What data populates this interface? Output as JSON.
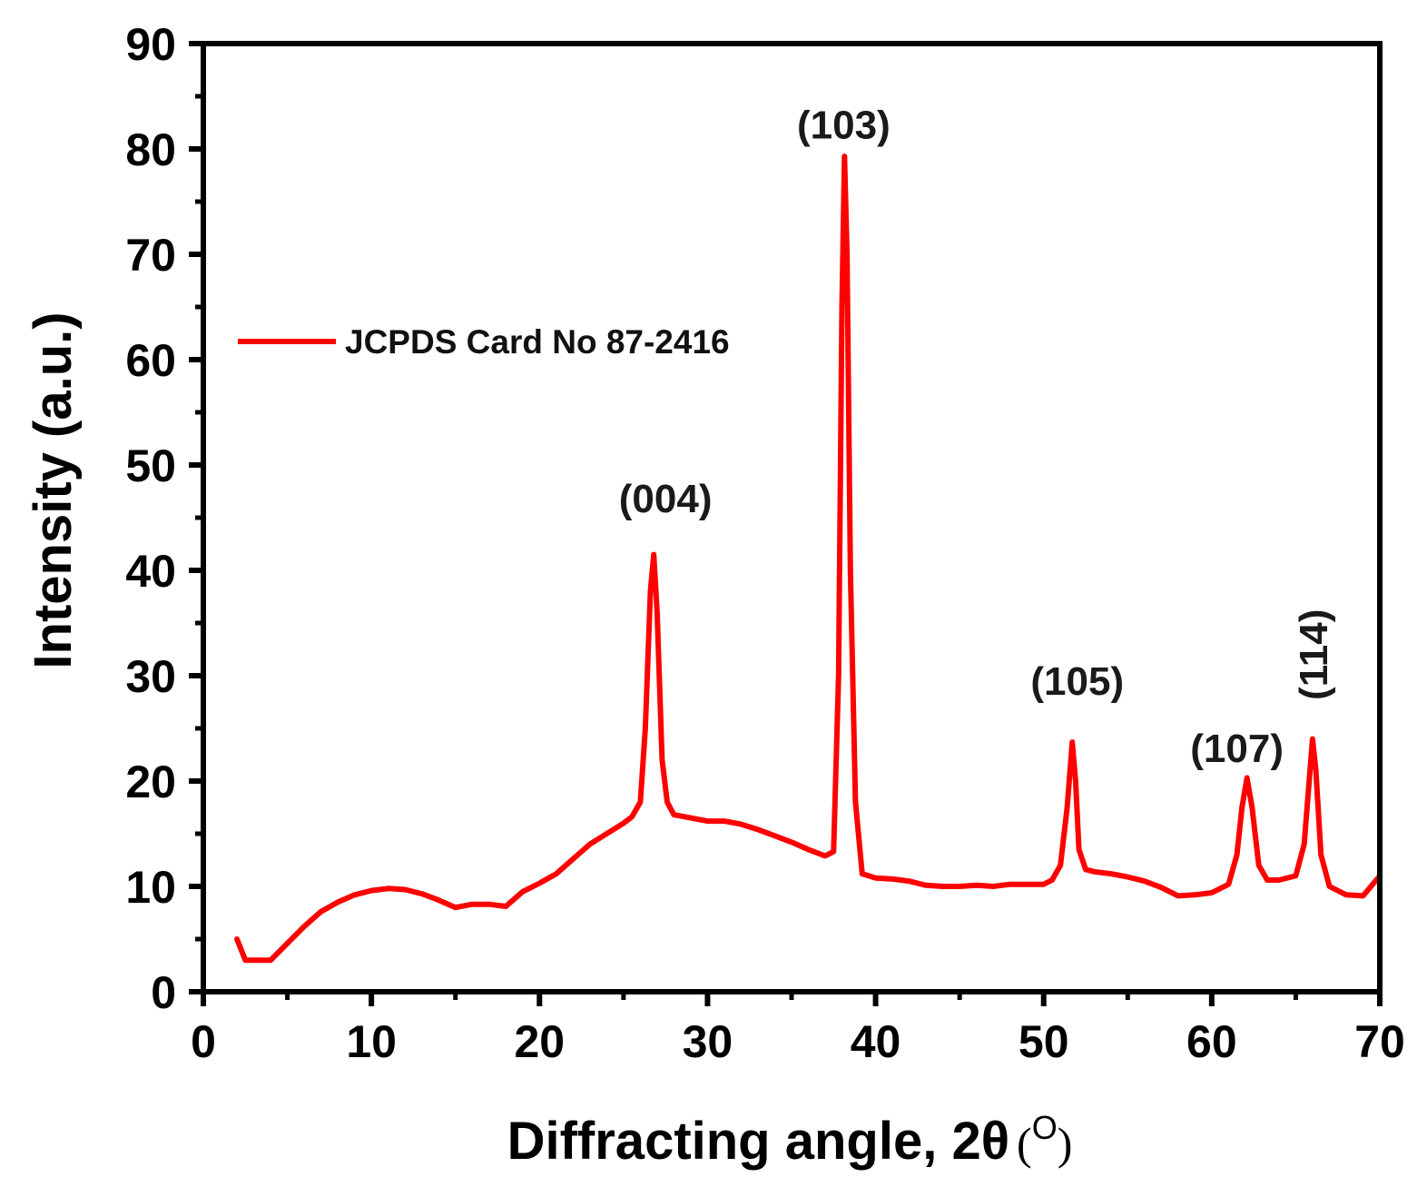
{
  "chart_data": {
    "type": "line",
    "title": "",
    "xlabel": "Diffracting angle, 2θ",
    "xlabel_unit_symbol": "O",
    "ylabel": "Intensity (a.u.)",
    "xlim": [
      0,
      70
    ],
    "ylim": [
      0,
      90
    ],
    "xticks": [
      0,
      10,
      20,
      30,
      40,
      50,
      60,
      70
    ],
    "yticks": [
      0,
      10,
      20,
      30,
      40,
      50,
      60,
      70,
      80,
      90
    ],
    "grid": false,
    "legend_position": "upper-left",
    "series": [
      {
        "name": "JCPDS Card No 87-2416",
        "color": "#ff0000",
        "x": [
          2.0,
          2.5,
          3.0,
          4.0,
          5.0,
          6.0,
          7.0,
          8.0,
          9.0,
          10.0,
          11.0,
          12.0,
          13.0,
          14.0,
          15.0,
          16.0,
          17.0,
          18.0,
          19.0,
          20.0,
          21.0,
          22.0,
          23.0,
          24.0,
          25.0,
          25.5,
          26.0,
          26.3,
          26.6,
          26.8,
          27.0,
          27.3,
          27.6,
          28.0,
          29.0,
          30.0,
          31.0,
          32.0,
          33.0,
          34.0,
          35.0,
          36.0,
          37.0,
          37.5,
          37.8,
          38.0,
          38.15,
          38.3,
          38.5,
          38.8,
          39.2,
          40.0,
          41.0,
          42.0,
          43.0,
          44.0,
          45.0,
          46.0,
          47.0,
          48.0,
          49.0,
          50.0,
          50.5,
          51.0,
          51.4,
          51.7,
          51.9,
          52.1,
          52.5,
          53.0,
          54.0,
          55.0,
          56.0,
          57.0,
          58.0,
          59.0,
          60.0,
          61.0,
          61.5,
          61.8,
          62.1,
          62.4,
          62.8,
          63.3,
          64.0,
          65.0,
          65.5,
          65.8,
          66.0,
          66.2,
          66.5,
          67.0,
          68.0,
          69.0,
          70.0
        ],
        "y": [
          5.0,
          3.0,
          3.0,
          3.0,
          4.6,
          6.2,
          7.6,
          8.5,
          9.2,
          9.6,
          9.8,
          9.7,
          9.3,
          8.7,
          8.0,
          8.3,
          8.3,
          8.1,
          9.5,
          10.3,
          11.2,
          12.6,
          14.0,
          15.0,
          16.0,
          16.6,
          18.0,
          25.0,
          38.0,
          41.5,
          36.0,
          22.0,
          18.0,
          16.8,
          16.5,
          16.2,
          16.2,
          15.9,
          15.4,
          14.8,
          14.2,
          13.5,
          12.9,
          13.3,
          30.0,
          65.0,
          79.3,
          70.0,
          40.0,
          18.0,
          11.2,
          10.8,
          10.7,
          10.5,
          10.1,
          10.0,
          10.0,
          10.1,
          10.0,
          10.2,
          10.2,
          10.2,
          10.6,
          12.0,
          17.5,
          23.7,
          20.0,
          13.5,
          11.6,
          11.4,
          11.2,
          10.9,
          10.5,
          9.9,
          9.1,
          9.2,
          9.4,
          10.2,
          13.0,
          17.5,
          20.3,
          17.5,
          12.0,
          10.6,
          10.6,
          11.0,
          14.0,
          20.0,
          24.0,
          21.0,
          13.0,
          10.0,
          9.2,
          9.1,
          11.0
        ]
      }
    ],
    "annotations": [
      {
        "text": "(004)",
        "x": 27.5,
        "y": 45.5,
        "rotated": false
      },
      {
        "text": "(103)",
        "x": 38.1,
        "y": 81.0,
        "rotated": false
      },
      {
        "text": "(105)",
        "x": 52.0,
        "y": 28.2,
        "rotated": false
      },
      {
        "text": "(107)",
        "x": 61.5,
        "y": 21.8,
        "rotated": false
      },
      {
        "text": "(114)",
        "x": 66.0,
        "y": 32.0,
        "rotated": true
      }
    ]
  }
}
